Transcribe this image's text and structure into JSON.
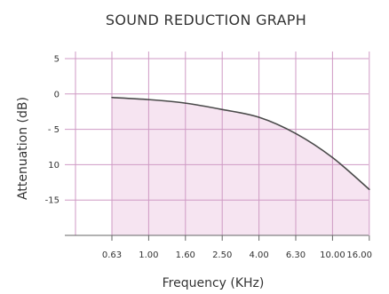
{
  "chart_data": {
    "type": "area",
    "title": "SOUND REDUCTION GRAPH",
    "xlabel": "Frequency (KHz)",
    "ylabel": "Attenuation (dB)",
    "categories": [
      "0.63",
      "1.00",
      "1.60",
      "2.50",
      "4.00",
      "6.30",
      "10.00",
      "16.00"
    ],
    "y_tick_labels": [
      "5",
      "0",
      "- 5",
      "10",
      "-15"
    ],
    "y_tick_values": [
      5,
      0,
      -5,
      -10,
      -15
    ],
    "ylim": [
      -20,
      6
    ],
    "grid": true,
    "series": [
      {
        "values": [
          -0.5,
          -0.8,
          -1.3,
          -2.2,
          -3.3,
          -5.6,
          -9.0,
          -13.5
        ],
        "color": "#4a4a4a",
        "fill": "#f6e4f1"
      }
    ],
    "colors": {
      "grid": "#cf9ac4",
      "axis": "#666666",
      "text": "#333333"
    }
  }
}
